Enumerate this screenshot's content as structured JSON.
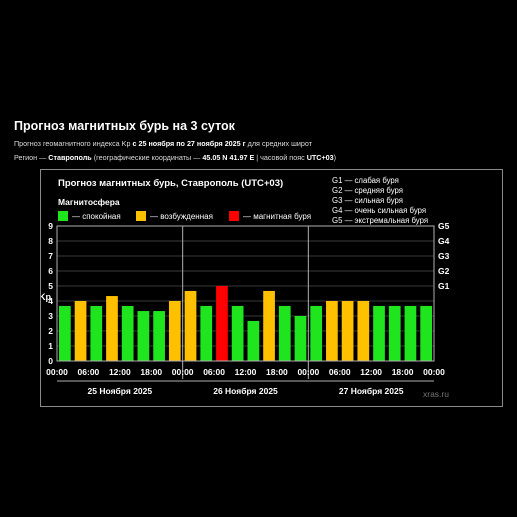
{
  "page": {
    "title": "Прогноз магнитных бурь на 3 суток",
    "line1_prefix": "Прогноз геомагнитного индекса Kp",
    "line1_bold": "с 25 ноября по 27 ноября 2025 г",
    "line1_suffix": "для средних широт",
    "line2_prefix": "Регион —",
    "line2_region": "Ставрополь",
    "line2_mid": "(географические координаты —",
    "line2_coords": "45.05 N 41.97 E",
    "line2_sep": "| часовой пояс",
    "line2_tz": "UTC+03",
    "line2_close": ")"
  },
  "chart_data": {
    "type": "bar",
    "title": "Прогноз магнитных бурь, Ставрополь (UTC+03)",
    "legend_title": "Магнитосфера",
    "legend": [
      {
        "label": "— спокойная",
        "color": "#1ee51e"
      },
      {
        "label": "— возбужденная",
        "color": "#ffc000"
      },
      {
        "label": "— магнитная буря",
        "color": "#ff0000"
      }
    ],
    "g_scale": [
      "G1 — слабая буря",
      "G2 — средняя буря",
      "G3 — сильная буря",
      "G4 — очень сильная буря",
      "G5 — экстремальная буря"
    ],
    "ylabel": "Kp",
    "ylim": [
      0,
      9
    ],
    "y_ticks": [
      "0",
      "1",
      "2",
      "3",
      "4",
      "5",
      "6",
      "7",
      "8",
      "9"
    ],
    "g_ticks": [
      "G1",
      "G2",
      "G3",
      "G4",
      "G5"
    ],
    "x_ticks": [
      "00:00",
      "06:00",
      "12:00",
      "18:00",
      "00:00",
      "06:00",
      "12:00",
      "18:00",
      "00:00",
      "06:00",
      "12:00",
      "18:00",
      "00:00"
    ],
    "days": [
      "25 Ноября 2025",
      "26 Ноября 2025",
      "27 Ноября 2025"
    ],
    "values": [
      3.67,
      4.0,
      3.67,
      4.33,
      3.67,
      3.33,
      3.33,
      4.0,
      4.67,
      3.67,
      5.0,
      3.67,
      2.67,
      4.67,
      3.67,
      3.0,
      3.67,
      4.0,
      4.0,
      4.0,
      3.67,
      3.67,
      3.67,
      3.67
    ],
    "levels": [
      "quiet",
      "active",
      "quiet",
      "active",
      "quiet",
      "quiet",
      "quiet",
      "active",
      "active",
      "quiet",
      "storm",
      "quiet",
      "quiet",
      "active",
      "quiet",
      "quiet",
      "quiet",
      "active",
      "active",
      "active",
      "quiet",
      "quiet",
      "quiet",
      "quiet"
    ],
    "colors": {
      "quiet": "#1ee51e",
      "active": "#ffc000",
      "storm": "#ff0000"
    },
    "watermark": "xras.ru"
  }
}
